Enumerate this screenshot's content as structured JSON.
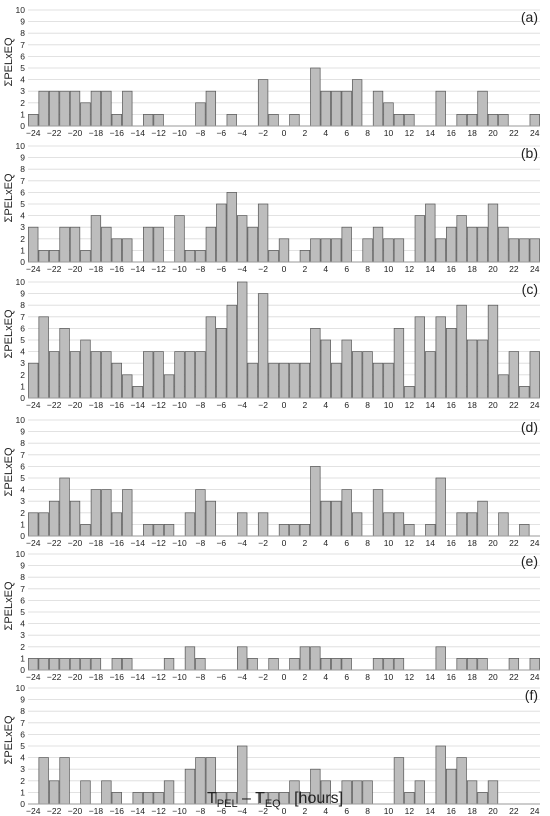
{
  "chart_data": [
    {
      "type": "bar",
      "panel_label": "(a)",
      "ylabel": "ΣPELxEQ",
      "ylim": [
        0,
        10
      ],
      "xlim": [
        -24,
        24
      ],
      "x": [
        -24,
        -23,
        -22,
        -21,
        -20,
        -19,
        -18,
        -17,
        -16,
        -15,
        -14,
        -13,
        -12,
        -11,
        -10,
        -9,
        -8,
        -7,
        -6,
        -5,
        -4,
        -3,
        -2,
        -1,
        0,
        1,
        2,
        3,
        4,
        5,
        6,
        7,
        8,
        9,
        10,
        11,
        12,
        13,
        14,
        15,
        16,
        17,
        18,
        19,
        20,
        21,
        22,
        23,
        24
      ],
      "values": [
        1,
        3,
        3,
        3,
        3,
        2,
        3,
        3,
        1,
        3,
        0,
        1,
        1,
        0,
        0,
        0,
        2,
        3,
        0,
        1,
        0,
        0,
        4,
        1,
        0,
        1,
        0,
        5,
        3,
        3,
        3,
        4,
        0,
        3,
        2,
        1,
        1,
        0,
        0,
        3,
        0,
        1,
        1,
        3,
        1,
        1,
        0,
        0,
        1
      ]
    },
    {
      "type": "bar",
      "panel_label": "(b)",
      "ylabel": "ΣPELxEQ",
      "ylim": [
        0,
        10
      ],
      "xlim": [
        -24,
        24
      ],
      "x": [
        -24,
        -23,
        -22,
        -21,
        -20,
        -19,
        -18,
        -17,
        -16,
        -15,
        -14,
        -13,
        -12,
        -11,
        -10,
        -9,
        -8,
        -7,
        -6,
        -5,
        -4,
        -3,
        -2,
        -1,
        0,
        1,
        2,
        3,
        4,
        5,
        6,
        7,
        8,
        9,
        10,
        11,
        12,
        13,
        14,
        15,
        16,
        17,
        18,
        19,
        20,
        21,
        22,
        23,
        24
      ],
      "values": [
        3,
        1,
        1,
        3,
        3,
        1,
        4,
        3,
        2,
        2,
        0,
        3,
        3,
        0,
        4,
        1,
        1,
        3,
        5,
        6,
        4,
        3,
        5,
        1,
        2,
        0,
        1,
        2,
        2,
        2,
        3,
        0,
        2,
        3,
        2,
        2,
        0,
        4,
        5,
        2,
        3,
        4,
        3,
        3,
        5,
        3,
        2,
        2,
        2
      ]
    },
    {
      "type": "bar",
      "panel_label": "(c)",
      "ylabel": "ΣPELxEQ",
      "ylim": [
        0,
        10
      ],
      "xlim": [
        -24,
        24
      ],
      "x": [
        -24,
        -23,
        -22,
        -21,
        -20,
        -19,
        -18,
        -17,
        -16,
        -15,
        -14,
        -13,
        -12,
        -11,
        -10,
        -9,
        -8,
        -7,
        -6,
        -5,
        -4,
        -3,
        -2,
        -1,
        0,
        1,
        2,
        3,
        4,
        5,
        6,
        7,
        8,
        9,
        10,
        11,
        12,
        13,
        14,
        15,
        16,
        17,
        18,
        19,
        20,
        21,
        22,
        23,
        24
      ],
      "values": [
        3,
        7,
        4,
        6,
        4,
        5,
        4,
        4,
        3,
        2,
        1,
        4,
        4,
        2,
        4,
        4,
        4,
        7,
        6,
        8,
        10,
        3,
        9,
        3,
        3,
        3,
        3,
        6,
        5,
        3,
        5,
        4,
        4,
        3,
        3,
        6,
        1,
        7,
        4,
        7,
        6,
        8,
        5,
        5,
        8,
        2,
        4,
        1,
        4
      ]
    },
    {
      "type": "bar",
      "panel_label": "(d)",
      "ylabel": "ΣPELxEQ",
      "ylim": [
        0,
        10
      ],
      "xlim": [
        -24,
        24
      ],
      "x": [
        -24,
        -23,
        -22,
        -21,
        -20,
        -19,
        -18,
        -17,
        -16,
        -15,
        -14,
        -13,
        -12,
        -11,
        -10,
        -9,
        -8,
        -7,
        -6,
        -5,
        -4,
        -3,
        -2,
        -1,
        0,
        1,
        2,
        3,
        4,
        5,
        6,
        7,
        8,
        9,
        10,
        11,
        12,
        13,
        14,
        15,
        16,
        17,
        18,
        19,
        20,
        21,
        22,
        23,
        24
      ],
      "values": [
        2,
        2,
        3,
        5,
        3,
        1,
        4,
        4,
        2,
        4,
        0,
        1,
        1,
        1,
        0,
        2,
        4,
        3,
        0,
        0,
        2,
        0,
        2,
        0,
        1,
        1,
        1,
        6,
        3,
        3,
        4,
        2,
        0,
        4,
        2,
        2,
        1,
        0,
        1,
        5,
        0,
        2,
        2,
        3,
        0,
        2,
        0,
        1,
        0
      ]
    },
    {
      "type": "bar",
      "panel_label": "(e)",
      "ylabel": "ΣPELxEQ",
      "ylim": [
        0,
        10
      ],
      "xlim": [
        -24,
        24
      ],
      "x": [
        -24,
        -23,
        -22,
        -21,
        -20,
        -19,
        -18,
        -17,
        -16,
        -15,
        -14,
        -13,
        -12,
        -11,
        -10,
        -9,
        -8,
        -7,
        -6,
        -5,
        -4,
        -3,
        -2,
        -1,
        0,
        1,
        2,
        3,
        4,
        5,
        6,
        7,
        8,
        9,
        10,
        11,
        12,
        13,
        14,
        15,
        16,
        17,
        18,
        19,
        20,
        21,
        22,
        23,
        24
      ],
      "values": [
        1,
        1,
        1,
        1,
        1,
        1,
        1,
        0,
        1,
        1,
        0,
        0,
        0,
        1,
        0,
        2,
        1,
        0,
        0,
        0,
        2,
        1,
        0,
        1,
        0,
        1,
        2,
        2,
        1,
        1,
        1,
        0,
        0,
        1,
        1,
        1,
        0,
        0,
        0,
        2,
        0,
        1,
        1,
        1,
        0,
        0,
        1,
        0,
        1
      ]
    },
    {
      "type": "bar",
      "panel_label": "(f)",
      "ylabel": "ΣPELxEQ",
      "ylim": [
        0,
        10
      ],
      "xlim": [
        -24,
        24
      ],
      "x": [
        -24,
        -23,
        -22,
        -21,
        -20,
        -19,
        -18,
        -17,
        -16,
        -15,
        -14,
        -13,
        -12,
        -11,
        -10,
        -9,
        -8,
        -7,
        -6,
        -5,
        -4,
        -3,
        -2,
        -1,
        0,
        1,
        2,
        3,
        4,
        5,
        6,
        7,
        8,
        9,
        10,
        11,
        12,
        13,
        14,
        15,
        16,
        17,
        18,
        19,
        20,
        21,
        22,
        23,
        24
      ],
      "values": [
        0,
        4,
        2,
        4,
        0,
        2,
        0,
        2,
        1,
        0,
        1,
        1,
        1,
        2,
        0,
        3,
        4,
        4,
        1,
        1,
        5,
        0,
        1,
        1,
        1,
        2,
        1,
        3,
        2,
        0,
        2,
        2,
        2,
        0,
        0,
        4,
        1,
        2,
        0,
        5,
        3,
        4,
        2,
        1,
        2,
        0,
        0,
        0,
        0
      ]
    }
  ],
  "style": {
    "bar_fill": "#bdbdbd",
    "bar_stroke": "#555555",
    "grid_color": "#d9d9d9",
    "axis_color": "#9a9a9a"
  },
  "xaxis": {
    "ticks": [
      -24,
      -22,
      -20,
      -18,
      -16,
      -14,
      -12,
      -10,
      -8,
      -6,
      -4,
      -2,
      0,
      2,
      4,
      6,
      8,
      10,
      12,
      14,
      16,
      18,
      20,
      22,
      24
    ],
    "yticks": [
      0,
      1,
      2,
      3,
      4,
      5,
      6,
      7,
      8,
      9,
      10
    ],
    "xlabel": {
      "t1": "T",
      "t1_sub": "PEL",
      "minus": " – ",
      "t2": "T",
      "t2_sub": "EQ",
      "unit": "[hours]"
    }
  }
}
